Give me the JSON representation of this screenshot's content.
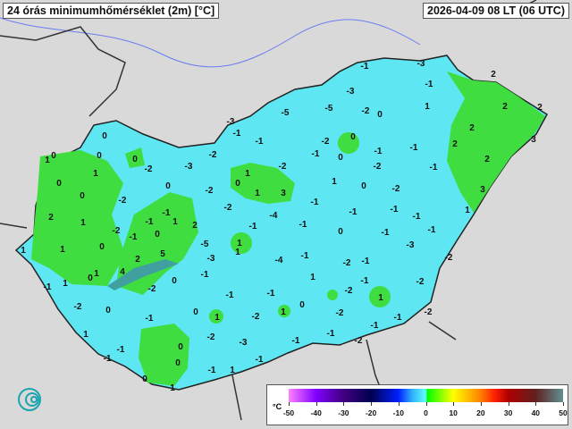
{
  "header": {
    "title": "24 órás minimumhőmérséklet (2m) [°C]",
    "datetime": "2026-04-09 08 LT (06 UTC)"
  },
  "legend": {
    "unit": "°C",
    "ticks": [
      "-50",
      "-40",
      "-30",
      "-20",
      "-10",
      "0",
      "10",
      "20",
      "30",
      "40",
      "50"
    ],
    "range": [
      -50,
      50
    ]
  },
  "colors": {
    "background": "#d9d9d9",
    "cold": "#5ee6f2",
    "warm": "#3fdd3f",
    "border": "#333333",
    "rivers": "#6a7cf0"
  },
  "logo": {
    "icon": "swirl-logo-icon"
  },
  "stations": [
    "-1",
    "-3",
    "-3",
    "-1",
    "-5",
    "-5",
    "-2",
    "0",
    "1",
    "2",
    "2",
    "2",
    "3",
    "-3",
    "-1",
    "0",
    "0",
    "1",
    "0",
    "0",
    "1",
    "-2",
    "-3",
    "-2",
    "-1",
    "-2",
    "0",
    "-1",
    "0",
    "-1",
    "-1",
    "2",
    "2",
    "2",
    "-2",
    "1",
    "0",
    "1",
    "3",
    "1",
    "0",
    "-2",
    "-2",
    "-1",
    "3",
    "0",
    "0",
    "0",
    "-2",
    "-2",
    "-2",
    "-4",
    "-1",
    "-1",
    "-1",
    "-1",
    "1",
    "2",
    "1",
    "-2",
    "-1",
    "1",
    "-1",
    "0",
    "2",
    "-1",
    "-1",
    "0",
    "-1",
    "-1",
    "-3",
    "-1",
    "1",
    "1",
    "0",
    "-5",
    "1",
    "1",
    "-3",
    "-4",
    "-1",
    "-2",
    "-1",
    "-2",
    "-1",
    "1",
    "0",
    "1",
    "4",
    "2",
    "5",
    "-2",
    "0",
    "-1",
    "-1",
    "-1",
    "1",
    "-2",
    "-1",
    "1",
    "-2",
    "-2",
    "0",
    "0",
    "1",
    "-2",
    "1",
    "0",
    "-2",
    "-1",
    "-1",
    "-2",
    "-1",
    "1",
    "-1",
    "-2",
    "-3",
    "-1",
    "-1",
    "-2",
    "0",
    "0",
    "-1",
    "0",
    "1",
    "-1",
    "1",
    "-1"
  ]
}
